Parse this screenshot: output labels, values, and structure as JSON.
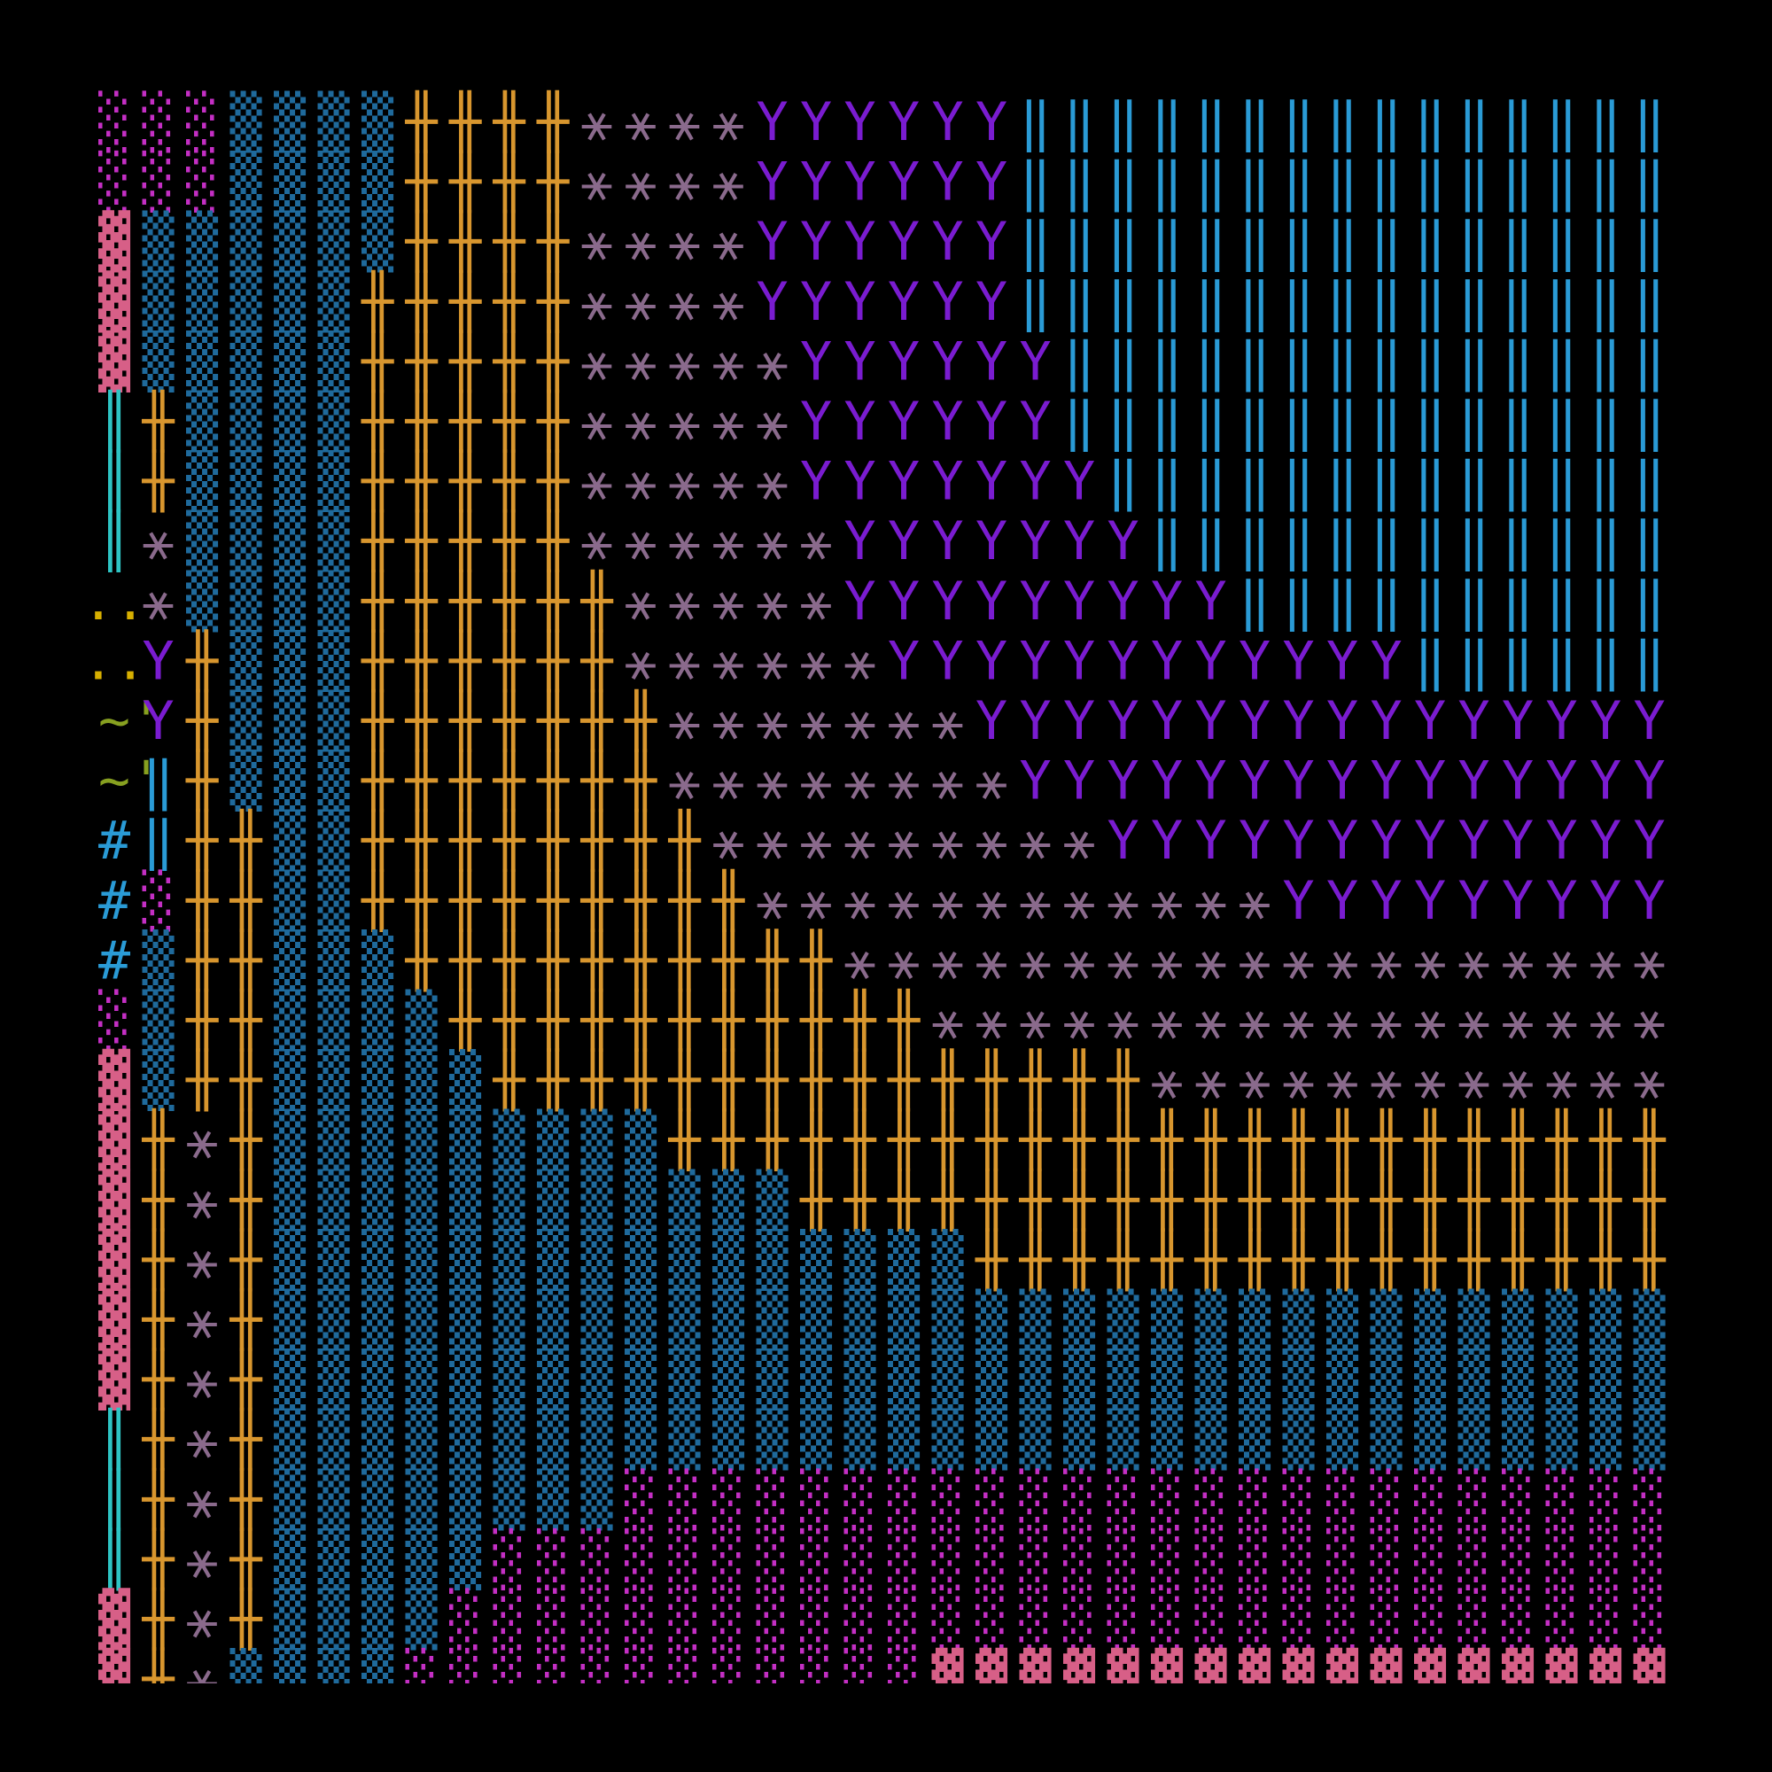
{
  "screen": {
    "colors": {
      "▓": "#d75f87",
      "▒": "#1f6a9c",
      "░": "#c42fc4",
      "╫": "#d8962e",
      "⚹": "#8a6a8c",
      "Y": "#7a1cd0",
      "‖": "#2a9bd6",
      "║": "#2ec4c4",
      "..": "#d7af00",
      "'~'": "#87a020",
      "#": "#2a9bd6"
    },
    "rows": [
      [
        "░",
        "░",
        "░",
        "▒",
        "▒",
        "▒",
        "▒",
        "╫",
        "╫",
        "╫",
        "╫",
        "⚹",
        "⚹",
        "⚹",
        "⚹",
        "Y",
        "Y",
        "Y",
        "Y",
        "Y",
        "Y",
        "‖",
        "‖",
        "‖",
        "‖",
        "‖",
        "‖",
        "‖",
        "‖",
        "‖",
        "‖",
        "‖",
        "‖",
        "‖",
        "‖",
        "‖"
      ],
      [
        "░",
        "░",
        "░",
        "▒",
        "▒",
        "▒",
        "▒",
        "╫",
        "╫",
        "╫",
        "╫",
        "⚹",
        "⚹",
        "⚹",
        "⚹",
        "Y",
        "Y",
        "Y",
        "Y",
        "Y",
        "Y",
        "‖",
        "‖",
        "‖",
        "‖",
        "‖",
        "‖",
        "‖",
        "‖",
        "‖",
        "‖",
        "‖",
        "‖",
        "‖",
        "‖",
        "‖"
      ],
      [
        "▓",
        "▒",
        "▒",
        "▒",
        "▒",
        "▒",
        "▒",
        "╫",
        "╫",
        "╫",
        "╫",
        "⚹",
        "⚹",
        "⚹",
        "⚹",
        "Y",
        "Y",
        "Y",
        "Y",
        "Y",
        "Y",
        "‖",
        "‖",
        "‖",
        "‖",
        "‖",
        "‖",
        "‖",
        "‖",
        "‖",
        "‖",
        "‖",
        "‖",
        "‖",
        "‖",
        "‖"
      ],
      [
        "▓",
        "▒",
        "▒",
        "▒",
        "▒",
        "▒",
        "╫",
        "╫",
        "╫",
        "╫",
        "╫",
        "⚹",
        "⚹",
        "⚹",
        "⚹",
        "Y",
        "Y",
        "Y",
        "Y",
        "Y",
        "Y",
        "‖",
        "‖",
        "‖",
        "‖",
        "‖",
        "‖",
        "‖",
        "‖",
        "‖",
        "‖",
        "‖",
        "‖",
        "‖",
        "‖",
        "‖"
      ],
      [
        "▓",
        "▒",
        "▒",
        "▒",
        "▒",
        "▒",
        "╫",
        "╫",
        "╫",
        "╫",
        "╫",
        "⚹",
        "⚹",
        "⚹",
        "⚹",
        "⚹",
        "Y",
        "Y",
        "Y",
        "Y",
        "Y",
        "Y",
        "‖",
        "‖",
        "‖",
        "‖",
        "‖",
        "‖",
        "‖",
        "‖",
        "‖",
        "‖",
        "‖",
        "‖",
        "‖",
        "‖"
      ],
      [
        "║",
        "╫",
        "▒",
        "▒",
        "▒",
        "▒",
        "╫",
        "╫",
        "╫",
        "╫",
        "╫",
        "⚹",
        "⚹",
        "⚹",
        "⚹",
        "⚹",
        "Y",
        "Y",
        "Y",
        "Y",
        "Y",
        "Y",
        "‖",
        "‖",
        "‖",
        "‖",
        "‖",
        "‖",
        "‖",
        "‖",
        "‖",
        "‖",
        "‖",
        "‖",
        "‖",
        "‖"
      ],
      [
        "║",
        "╫",
        "▒",
        "▒",
        "▒",
        "▒",
        "╫",
        "╫",
        "╫",
        "╫",
        "╫",
        "⚹",
        "⚹",
        "⚹",
        "⚹",
        "⚹",
        "Y",
        "Y",
        "Y",
        "Y",
        "Y",
        "Y",
        "Y",
        "‖",
        "‖",
        "‖",
        "‖",
        "‖",
        "‖",
        "‖",
        "‖",
        "‖",
        "‖",
        "‖",
        "‖",
        "‖"
      ],
      [
        "║",
        "⚹",
        "▒",
        "▒",
        "▒",
        "▒",
        "╫",
        "╫",
        "╫",
        "╫",
        "╫",
        "⚹",
        "⚹",
        "⚹",
        "⚹",
        "⚹",
        "⚹",
        "Y",
        "Y",
        "Y",
        "Y",
        "Y",
        "Y",
        "Y",
        "‖",
        "‖",
        "‖",
        "‖",
        "‖",
        "‖",
        "‖",
        "‖",
        "‖",
        "‖",
        "‖",
        "‖"
      ],
      [
        "..",
        "⚹",
        "▒",
        "▒",
        "▒",
        "▒",
        "╫",
        "╫",
        "╫",
        "╫",
        "╫",
        "╫",
        "⚹",
        "⚹",
        "⚹",
        "⚹",
        "⚹",
        "Y",
        "Y",
        "Y",
        "Y",
        "Y",
        "Y",
        "Y",
        "Y",
        "Y",
        "‖",
        "‖",
        "‖",
        "‖",
        "‖",
        "‖",
        "‖",
        "‖",
        "‖",
        "‖"
      ],
      [
        "..",
        "Y",
        "╫",
        "▒",
        "▒",
        "▒",
        "╫",
        "╫",
        "╫",
        "╫",
        "╫",
        "╫",
        "⚹",
        "⚹",
        "⚹",
        "⚹",
        "⚹",
        "⚹",
        "Y",
        "Y",
        "Y",
        "Y",
        "Y",
        "Y",
        "Y",
        "Y",
        "Y",
        "Y",
        "Y",
        "Y",
        "‖",
        "‖",
        "‖",
        "‖",
        "‖",
        "‖"
      ],
      [
        "'~'",
        "Y",
        "╫",
        "▒",
        "▒",
        "▒",
        "╫",
        "╫",
        "╫",
        "╫",
        "╫",
        "╫",
        "╫",
        "⚹",
        "⚹",
        "⚹",
        "⚹",
        "⚹",
        "⚹",
        "⚹",
        "Y",
        "Y",
        "Y",
        "Y",
        "Y",
        "Y",
        "Y",
        "Y",
        "Y",
        "Y",
        "Y",
        "Y",
        "Y",
        "Y",
        "Y",
        "Y"
      ],
      [
        "'~'",
        "‖",
        "╫",
        "▒",
        "▒",
        "▒",
        "╫",
        "╫",
        "╫",
        "╫",
        "╫",
        "╫",
        "╫",
        "⚹",
        "⚹",
        "⚹",
        "⚹",
        "⚹",
        "⚹",
        "⚹",
        "⚹",
        "Y",
        "Y",
        "Y",
        "Y",
        "Y",
        "Y",
        "Y",
        "Y",
        "Y",
        "Y",
        "Y",
        "Y",
        "Y",
        "Y",
        "Y"
      ],
      [
        "#",
        "‖",
        "╫",
        "╫",
        "▒",
        "▒",
        "╫",
        "╫",
        "╫",
        "╫",
        "╫",
        "╫",
        "╫",
        "╫",
        "⚹",
        "⚹",
        "⚹",
        "⚹",
        "⚹",
        "⚹",
        "⚹",
        "⚹",
        "⚹",
        "Y",
        "Y",
        "Y",
        "Y",
        "Y",
        "Y",
        "Y",
        "Y",
        "Y",
        "Y",
        "Y",
        "Y",
        "Y"
      ],
      [
        "#",
        "░",
        "╫",
        "╫",
        "▒",
        "▒",
        "╫",
        "╫",
        "╫",
        "╫",
        "╫",
        "╫",
        "╫",
        "╫",
        "╫",
        "⚹",
        "⚹",
        "⚹",
        "⚹",
        "⚹",
        "⚹",
        "⚹",
        "⚹",
        "⚹",
        "⚹",
        "⚹",
        "⚹",
        "Y",
        "Y",
        "Y",
        "Y",
        "Y",
        "Y",
        "Y",
        "Y",
        "Y"
      ],
      [
        "#",
        "▒",
        "╫",
        "╫",
        "▒",
        "▒",
        "▒",
        "╫",
        "╫",
        "╫",
        "╫",
        "╫",
        "╫",
        "╫",
        "╫",
        "╫",
        "╫",
        "⚹",
        "⚹",
        "⚹",
        "⚹",
        "⚹",
        "⚹",
        "⚹",
        "⚹",
        "⚹",
        "⚹",
        "⚹",
        "⚹",
        "⚹",
        "⚹",
        "⚹",
        "⚹",
        "⚹",
        "⚹",
        "⚹"
      ],
      [
        "░",
        "▒",
        "╫",
        "╫",
        "▒",
        "▒",
        "▒",
        "▒",
        "╫",
        "╫",
        "╫",
        "╫",
        "╫",
        "╫",
        "╫",
        "╫",
        "╫",
        "╫",
        "╫",
        "⚹",
        "⚹",
        "⚹",
        "⚹",
        "⚹",
        "⚹",
        "⚹",
        "⚹",
        "⚹",
        "⚹",
        "⚹",
        "⚹",
        "⚹",
        "⚹",
        "⚹",
        "⚹",
        "⚹"
      ],
      [
        "▓",
        "▒",
        "╫",
        "╫",
        "▒",
        "▒",
        "▒",
        "▒",
        "▒",
        "╫",
        "╫",
        "╫",
        "╫",
        "╫",
        "╫",
        "╫",
        "╫",
        "╫",
        "╫",
        "╫",
        "╫",
        "╫",
        "╫",
        "╫",
        "⚹",
        "⚹",
        "⚹",
        "⚹",
        "⚹",
        "⚹",
        "⚹",
        "⚹",
        "⚹",
        "⚹",
        "⚹",
        "⚹"
      ],
      [
        "▓",
        "╫",
        "⚹",
        "╫",
        "▒",
        "▒",
        "▒",
        "▒",
        "▒",
        "▒",
        "▒",
        "▒",
        "▒",
        "╫",
        "╫",
        "╫",
        "╫",
        "╫",
        "╫",
        "╫",
        "╫",
        "╫",
        "╫",
        "╫",
        "╫",
        "╫",
        "╫",
        "╫",
        "╫",
        "╫",
        "╫",
        "╫",
        "╫",
        "╫",
        "╫",
        "╫"
      ],
      [
        "▓",
        "╫",
        "⚹",
        "╫",
        "▒",
        "▒",
        "▒",
        "▒",
        "▒",
        "▒",
        "▒",
        "▒",
        "▒",
        "▒",
        "▒",
        "▒",
        "╫",
        "╫",
        "╫",
        "╫",
        "╫",
        "╫",
        "╫",
        "╫",
        "╫",
        "╫",
        "╫",
        "╫",
        "╫",
        "╫",
        "╫",
        "╫",
        "╫",
        "╫",
        "╫",
        "╫"
      ],
      [
        "▓",
        "╫",
        "⚹",
        "╫",
        "▒",
        "▒",
        "▒",
        "▒",
        "▒",
        "▒",
        "▒",
        "▒",
        "▒",
        "▒",
        "▒",
        "▒",
        "▒",
        "▒",
        "▒",
        "▒",
        "╫",
        "╫",
        "╫",
        "╫",
        "╫",
        "╫",
        "╫",
        "╫",
        "╫",
        "╫",
        "╫",
        "╫",
        "╫",
        "╫",
        "╫",
        "╫"
      ],
      [
        "▓",
        "╫",
        "⚹",
        "╫",
        "▒",
        "▒",
        "▒",
        "▒",
        "▒",
        "▒",
        "▒",
        "▒",
        "▒",
        "▒",
        "▒",
        "▒",
        "▒",
        "▒",
        "▒",
        "▒",
        "▒",
        "▒",
        "▒",
        "▒",
        "▒",
        "▒",
        "▒",
        "▒",
        "▒",
        "▒",
        "▒",
        "▒",
        "▒",
        "▒",
        "▒",
        "▒"
      ],
      [
        "▓",
        "╫",
        "⚹",
        "╫",
        "▒",
        "▒",
        "▒",
        "▒",
        "▒",
        "▒",
        "▒",
        "▒",
        "▒",
        "▒",
        "▒",
        "▒",
        "▒",
        "▒",
        "▒",
        "▒",
        "▒",
        "▒",
        "▒",
        "▒",
        "▒",
        "▒",
        "▒",
        "▒",
        "▒",
        "▒",
        "▒",
        "▒",
        "▒",
        "▒",
        "▒",
        "▒"
      ],
      [
        "║",
        "╫",
        "⚹",
        "╫",
        "▒",
        "▒",
        "▒",
        "▒",
        "▒",
        "▒",
        "▒",
        "▒",
        "▒",
        "▒",
        "▒",
        "▒",
        "▒",
        "▒",
        "▒",
        "▒",
        "▒",
        "▒",
        "▒",
        "▒",
        "▒",
        "▒",
        "▒",
        "▒",
        "▒",
        "▒",
        "▒",
        "▒",
        "▒",
        "▒",
        "▒",
        "▒"
      ],
      [
        "║",
        "╫",
        "⚹",
        "╫",
        "▒",
        "▒",
        "▒",
        "▒",
        "▒",
        "▒",
        "▒",
        "▒",
        "░",
        "░",
        "░",
        "░",
        "░",
        "░",
        "░",
        "░",
        "░",
        "░",
        "░",
        "░",
        "░",
        "░",
        "░",
        "░",
        "░",
        "░",
        "░",
        "░",
        "░",
        "░",
        "░",
        "░"
      ],
      [
        "║",
        "╫",
        "⚹",
        "╫",
        "▒",
        "▒",
        "▒",
        "▒",
        "▒",
        "░",
        "░",
        "░",
        "░",
        "░",
        "░",
        "░",
        "░",
        "░",
        "░",
        "░",
        "░",
        "░",
        "░",
        "░",
        "░",
        "░",
        "░",
        "░",
        "░",
        "░",
        "░",
        "░",
        "░",
        "░",
        "░",
        "░"
      ],
      [
        "▓",
        "╫",
        "⚹",
        "╫",
        "▒",
        "▒",
        "▒",
        "▒",
        "░",
        "░",
        "░",
        "░",
        "░",
        "░",
        "░",
        "░",
        "░",
        "░",
        "░",
        "░",
        "░",
        "░",
        "░",
        "░",
        "░",
        "░",
        "░",
        "░",
        "░",
        "░",
        "░",
        "░",
        "░",
        "░",
        "░",
        "░"
      ],
      [
        "▓",
        "╫",
        "⚹",
        "▒",
        "▒",
        "▒",
        "▒",
        "░",
        "░",
        "░",
        "░",
        "░",
        "░",
        "░",
        "░",
        "░",
        "░",
        "░",
        "░",
        "▓",
        "▓",
        "▓",
        "▓",
        "▓",
        "▓",
        "▓",
        "▓",
        "▓",
        "▓",
        "▓",
        "▓",
        "▓",
        "▓",
        "▓",
        "▓",
        "▓"
      ]
    ]
  }
}
